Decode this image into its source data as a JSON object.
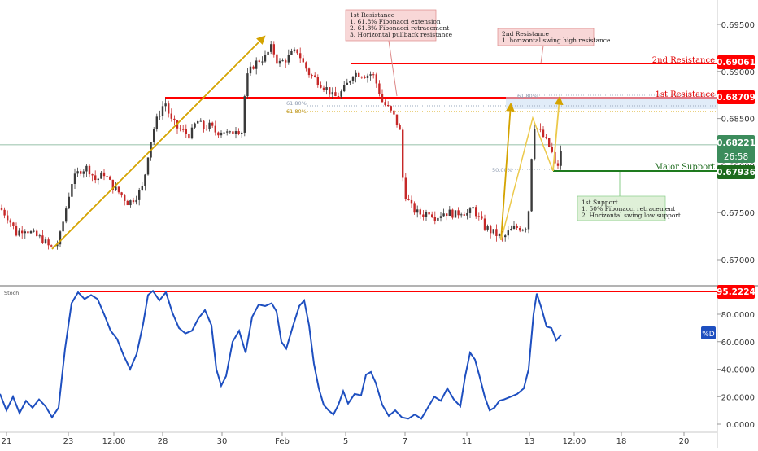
{
  "chart_data": [
    {
      "type": "candlestick",
      "title": "",
      "y_ticks": [
        "0.69500",
        "0.69000",
        "0.68500",
        "0.68000",
        "0.67500",
        "0.67000"
      ],
      "x_ticks": [
        "21",
        "23",
        "12:00",
        "28",
        "30",
        "Feb",
        "5",
        "7",
        "11",
        "13",
        "12:00",
        "18",
        "20"
      ],
      "ylim": [
        0.6684,
        0.6973
      ],
      "price_path": [
        [
          0,
          0.6755
        ],
        [
          10,
          0.6745
        ],
        [
          20,
          0.6728
        ],
        [
          30,
          0.6734
        ],
        [
          42,
          0.6726
        ],
        [
          52,
          0.6722
        ],
        [
          62,
          0.6712
        ],
        [
          72,
          0.6718
        ],
        [
          80,
          0.675
        ],
        [
          88,
          0.6782
        ],
        [
          98,
          0.6795
        ],
        [
          108,
          0.6798
        ],
        [
          118,
          0.6784
        ],
        [
          128,
          0.6792
        ],
        [
          138,
          0.6778
        ],
        [
          148,
          0.677
        ],
        [
          158,
          0.676
        ],
        [
          168,
          0.6768
        ],
        [
          176,
          0.6778
        ],
        [
          183,
          0.6818
        ],
        [
          190,
          0.6842
        ],
        [
          198,
          0.686
        ],
        [
          203,
          0.6868
        ],
        [
          210,
          0.6848
        ],
        [
          218,
          0.684
        ],
        [
          226,
          0.6836
        ],
        [
          234,
          0.6832
        ],
        [
          242,
          0.6848
        ],
        [
          250,
          0.684
        ],
        [
          258,
          0.6842
        ],
        [
          266,
          0.6835
        ],
        [
          274,
          0.6838
        ],
        [
          282,
          0.6832
        ],
        [
          290,
          0.684
        ],
        [
          298,
          0.6836
        ],
        [
          302,
          0.689
        ],
        [
          310,
          0.6905
        ],
        [
          318,
          0.6912
        ],
        [
          326,
          0.6915
        ],
        [
          334,
          0.6926
        ],
        [
          342,
          0.6908
        ],
        [
          350,
          0.6912
        ],
        [
          358,
          0.6918
        ],
        [
          366,
          0.6922
        ],
        [
          372,
          0.691
        ],
        [
          380,
          0.6898
        ],
        [
          388,
          0.6892
        ],
        [
          396,
          0.6886
        ],
        [
          404,
          0.688
        ],
        [
          410,
          0.6872
        ],
        [
          418,
          0.6876
        ],
        [
          426,
          0.6885
        ],
        [
          434,
          0.6898
        ],
        [
          442,
          0.6898
        ],
        [
          450,
          0.6896
        ],
        [
          458,
          0.6898
        ],
        [
          464,
          0.6885
        ],
        [
          470,
          0.6868
        ],
        [
          478,
          0.686
        ],
        [
          486,
          0.685
        ],
        [
          492,
          0.6835
        ],
        [
          496,
          0.6775
        ],
        [
          504,
          0.6758
        ],
        [
          512,
          0.675
        ],
        [
          520,
          0.6748
        ],
        [
          528,
          0.6752
        ],
        [
          536,
          0.6745
        ],
        [
          544,
          0.675
        ],
        [
          552,
          0.675
        ],
        [
          560,
          0.6748
        ],
        [
          568,
          0.6752
        ],
        [
          576,
          0.6748
        ],
        [
          582,
          0.6755
        ],
        [
          588,
          0.6745
        ],
        [
          596,
          0.6735
        ],
        [
          604,
          0.673
        ],
        [
          612,
          0.6726
        ],
        [
          618,
          0.6722
        ],
        [
          626,
          0.673
        ],
        [
          634,
          0.6734
        ],
        [
          642,
          0.6734
        ],
        [
          648,
          0.6736
        ],
        [
          652,
          0.677
        ],
        [
          655,
          0.6845
        ],
        [
          662,
          0.6838
        ],
        [
          670,
          0.6828
        ],
        [
          678,
          0.6816
        ],
        [
          684,
          0.6794
        ],
        [
          690,
          0.6815
        ],
        [
          692,
          0.6822
        ]
      ],
      "stoch_d": {
        "name": "%D",
        "ylim": [
          -2,
          100
        ],
        "y_ticks": [
          "80.0000",
          "60.0000",
          "40.0000",
          "20.0000",
          "0.0000"
        ],
        "points": [
          [
            0,
            22
          ],
          [
            8,
            10
          ],
          [
            16,
            20
          ],
          [
            24,
            8
          ],
          [
            32,
            17
          ],
          [
            40,
            12
          ],
          [
            48,
            18
          ],
          [
            56,
            13
          ],
          [
            64,
            5
          ],
          [
            72,
            12
          ],
          [
            80,
            55
          ],
          [
            88,
            88
          ],
          [
            96,
            96
          ],
          [
            104,
            91
          ],
          [
            112,
            94
          ],
          [
            120,
            91
          ],
          [
            128,
            80
          ],
          [
            136,
            68
          ],
          [
            144,
            62
          ],
          [
            152,
            50
          ],
          [
            160,
            40
          ],
          [
            168,
            51
          ],
          [
            176,
            73
          ],
          [
            182,
            94
          ],
          [
            188,
            97
          ],
          [
            196,
            90
          ],
          [
            204,
            96
          ],
          [
            212,
            81
          ],
          [
            220,
            70
          ],
          [
            228,
            66
          ],
          [
            236,
            68
          ],
          [
            244,
            77
          ],
          [
            252,
            83
          ],
          [
            260,
            72
          ],
          [
            266,
            40
          ],
          [
            272,
            28
          ],
          [
            278,
            35
          ],
          [
            286,
            60
          ],
          [
            294,
            68
          ],
          [
            302,
            52
          ],
          [
            310,
            78
          ],
          [
            318,
            87
          ],
          [
            326,
            86
          ],
          [
            334,
            88
          ],
          [
            340,
            82
          ],
          [
            346,
            60
          ],
          [
            352,
            55
          ],
          [
            360,
            71
          ],
          [
            368,
            86
          ],
          [
            374,
            90
          ],
          [
            380,
            72
          ],
          [
            386,
            44
          ],
          [
            392,
            26
          ],
          [
            398,
            14
          ],
          [
            404,
            10
          ],
          [
            410,
            7
          ],
          [
            416,
            14
          ],
          [
            422,
            24
          ],
          [
            428,
            15
          ],
          [
            436,
            22
          ],
          [
            444,
            21
          ],
          [
            450,
            36
          ],
          [
            456,
            38
          ],
          [
            462,
            30
          ],
          [
            470,
            14
          ],
          [
            478,
            6
          ],
          [
            486,
            10
          ],
          [
            494,
            5
          ],
          [
            502,
            4
          ],
          [
            510,
            7
          ],
          [
            518,
            4
          ],
          [
            526,
            12
          ],
          [
            534,
            20
          ],
          [
            542,
            17
          ],
          [
            550,
            26
          ],
          [
            558,
            18
          ],
          [
            566,
            13
          ],
          [
            572,
            35
          ],
          [
            578,
            52
          ],
          [
            584,
            47
          ],
          [
            590,
            34
          ],
          [
            596,
            20
          ],
          [
            602,
            10
          ],
          [
            608,
            12
          ],
          [
            614,
            17
          ],
          [
            620,
            18
          ],
          [
            628,
            20
          ],
          [
            636,
            22
          ],
          [
            644,
            26
          ],
          [
            650,
            40
          ],
          [
            656,
            80
          ],
          [
            660,
            95
          ],
          [
            666,
            84
          ],
          [
            672,
            71
          ],
          [
            678,
            70
          ],
          [
            684,
            61
          ],
          [
            690,
            65
          ]
        ]
      },
      "levels": {
        "second_resistance": {
          "label": "2nd Resistance",
          "value": "0.69061",
          "color": "#ff0000"
        },
        "first_resistance": {
          "label": "1st Resistance",
          "value": "0.68709",
          "color": "#ff0000"
        },
        "major_support": {
          "label": "Major Support",
          "value": "0.67936",
          "color": "#1e7b1e"
        },
        "current_price": {
          "value": "0.68221",
          "countdown": "26:58",
          "color": "#3c8c5c"
        },
        "stoch_level": {
          "value": "95.2224",
          "color": "#ff0000"
        }
      },
      "fib_labels": {
        "a": "61.80%",
        "b": "61.80%",
        "c": "61.80%",
        "d": "50.00%"
      },
      "notes": {
        "first_resistance": [
          "1st Resistance",
          "1. 61.8% Fibonacci extension",
          "2. 61.8% Fibonacci retracement",
          "3. Horizontal pullback resistance"
        ],
        "second_resistance": [
          "2nd Resistance",
          "1. horizontal swing high resistance"
        ],
        "first_support": [
          "1st Support",
          "1. 50% Fibonacci retracement",
          "2. Horizontal swing low support"
        ]
      },
      "indicator_title": "Stoch",
      "indicator_legend": "%D",
      "colors": {
        "up": "#3a3a3a",
        "down": "#c62828",
        "stoch": "#1e4fc0",
        "fib": "#d4a300",
        "note_red_bg": "#f8d7d7",
        "note_green_bg": "#dff0d8"
      }
    }
  ]
}
